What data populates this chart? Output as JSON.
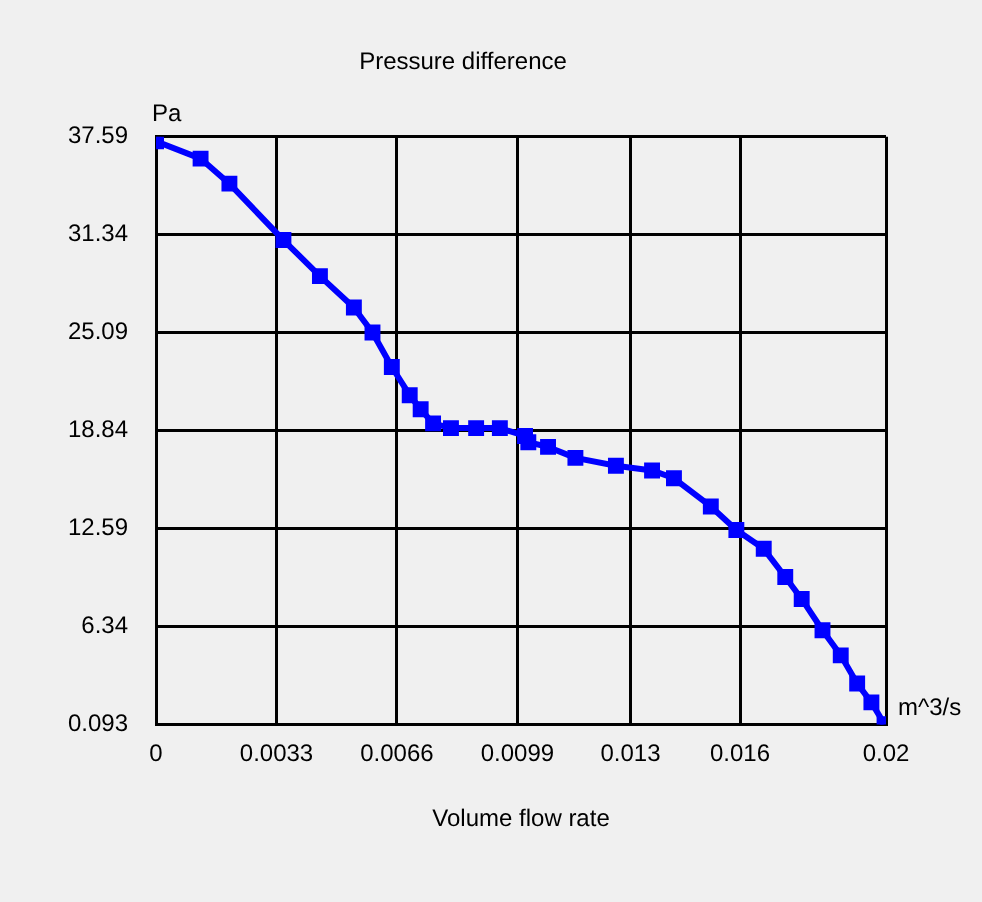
{
  "chart_data": {
    "type": "line",
    "title": "Pressure difference",
    "xlabel": "Volume flow rate",
    "ylabel": "Pa",
    "annotations": [
      "m^3/s"
    ],
    "x": [
      0,
      0.00122,
      0.00201,
      0.00349,
      0.00449,
      0.00542,
      0.00593,
      0.00646,
      0.00695,
      0.00725,
      0.00759,
      0.00808,
      0.00877,
      0.00942,
      0.01011,
      0.0102,
      0.01074,
      0.01149,
      0.0126,
      0.01359,
      0.01419,
      0.0152,
      0.0159,
      0.01665,
      0.01724,
      0.01769,
      0.01826,
      0.01876,
      0.01921,
      0.0196,
      0.01996
    ],
    "series": [
      {
        "color": "#0000ff",
        "values": [
          37.3,
          36.2,
          34.6,
          31.0,
          28.7,
          26.7,
          25.1,
          22.9,
          21.1,
          20.2,
          19.3,
          19.0,
          19.0,
          19.0,
          18.5,
          18.1,
          17.8,
          17.1,
          16.6,
          16.3,
          15.8,
          14.0,
          12.5,
          11.3,
          9.5,
          8.1,
          6.1,
          4.5,
          2.7,
          1.5,
          0.1
        ]
      }
    ],
    "xlim": [
      0,
      0.02
    ],
    "xticks": [
      0,
      0.0033,
      0.0066,
      0.0099,
      0.013,
      0.016,
      0.02
    ],
    "ylim": [
      0.093,
      37.59
    ],
    "yticks": [
      0.093,
      6.34,
      12.59,
      18.84,
      25.09,
      31.34,
      37.59
    ],
    "grid": true,
    "legend": false,
    "marker": "square",
    "line_style": "solid"
  }
}
